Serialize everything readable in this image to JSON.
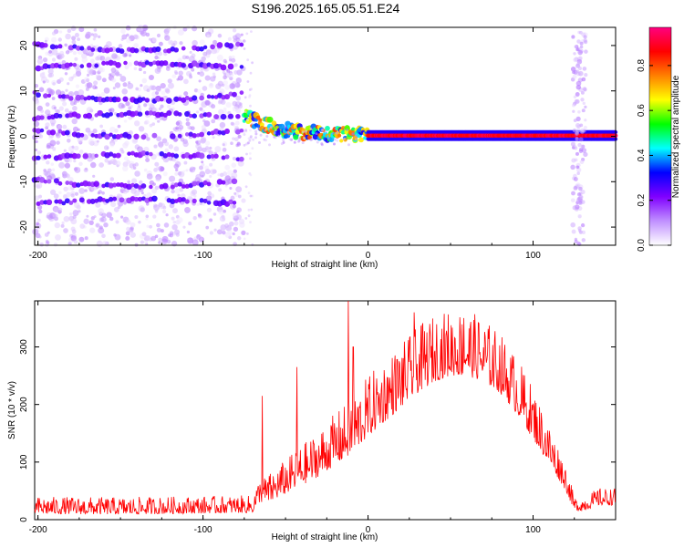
{
  "title": "S196.2025.165.05.51.E24",
  "chart_data": [
    {
      "type": "heatmap",
      "xlabel": "Height of straight line (km)",
      "ylabel": "Frequency (Hz)",
      "xlim": [
        -202,
        150
      ],
      "ylim": [
        -24,
        24
      ],
      "xticks": [
        -200,
        -100,
        0,
        100
      ],
      "yticks": [
        20,
        10,
        0,
        -10,
        -20
      ],
      "colorbar": {
        "label": "Normalized spectral amplitude",
        "range": [
          0,
          0.97
        ],
        "ticks": [
          0.0,
          0.2,
          0.4,
          0.6,
          0.8
        ],
        "colors": [
          "#ffffff",
          "#c090ff",
          "#8000ff",
          "#0000ff",
          "#00ffff",
          "#00ff00",
          "#ffff00",
          "#ff8000",
          "#ff0000",
          "#ff0080"
        ]
      },
      "features": {
        "harmonic_bands_hz": [
          19,
          16,
          8,
          5,
          0,
          -4,
          -11,
          -14
        ],
        "noise_region_km": [
          -202,
          -75
        ],
        "transition_km": [
          -75,
          0
        ],
        "zero_line_km": [
          0,
          150
        ],
        "noise_column_km": 128
      }
    },
    {
      "type": "line",
      "xlabel": "Height of straight line (km)",
      "ylabel": "SNR (10 * v/v)",
      "xlim": [
        -202,
        150
      ],
      "ylim": [
        0,
        380
      ],
      "xticks": [
        -200,
        -100,
        0,
        100
      ],
      "yticks": [
        0,
        100,
        200,
        300
      ],
      "color": "#ff0000",
      "envelope": {
        "x": [
          -202,
          -150,
          -100,
          -75,
          -70,
          -66,
          -60,
          -50,
          -40,
          -30,
          -20,
          -12,
          -10,
          -8,
          0,
          10,
          20,
          30,
          40,
          50,
          60,
          70,
          80,
          90,
          100,
          110,
          120,
          125,
          130,
          140,
          150
        ],
        "base": [
          10,
          9,
          11,
          12,
          12,
          30,
          30,
          45,
          60,
          75,
          95,
          110,
          115,
          120,
          145,
          170,
          195,
          220,
          240,
          250,
          250,
          240,
          220,
          185,
          140,
          95,
          50,
          15,
          15,
          25,
          25
        ],
        "spread": [
          30,
          30,
          30,
          30,
          30,
          40,
          50,
          60,
          70,
          80,
          90,
          95,
          100,
          100,
          105,
          110,
          110,
          115,
          115,
          115,
          115,
          110,
          105,
          100,
          90,
          70,
          45,
          25,
          25,
          30,
          30
        ]
      },
      "spikes": [
        {
          "x": -64,
          "y": 215
        },
        {
          "x": -43,
          "y": 265
        },
        {
          "x": -12,
          "y": 380
        },
        {
          "x": -9,
          "y": 300
        },
        {
          "x": 28,
          "y": 360
        },
        {
          "x": 58,
          "y": 350
        }
      ]
    }
  ]
}
